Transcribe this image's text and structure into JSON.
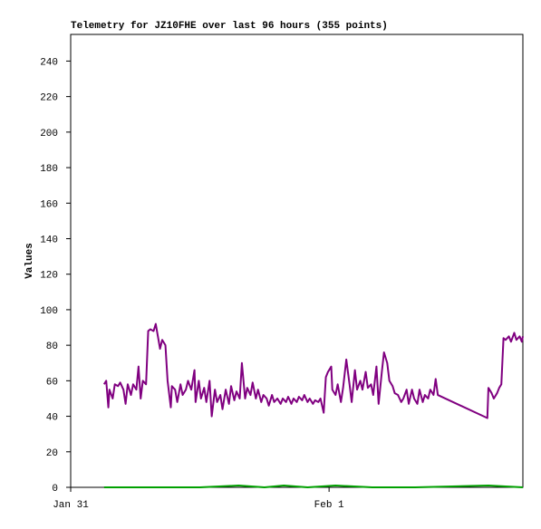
{
  "chart_data": {
    "type": "line",
    "title": "Telemetry for JZ10FHE over last 96 hours (355 points)",
    "y_label": "Values",
    "xlim": [
      0,
      42
    ],
    "xticks": [
      {
        "value": 0,
        "label": "Jan 31"
      },
      {
        "value": 24,
        "label": "Feb 1"
      }
    ],
    "ylim": [
      0,
      255
    ],
    "yticks": [
      0,
      20,
      40,
      60,
      80,
      100,
      120,
      140,
      160,
      180,
      200,
      220,
      240
    ],
    "series": [
      {
        "color": "#800080",
        "x": [
          3.1,
          3.3,
          3.5,
          3.6,
          3.9,
          4.1,
          4.4,
          4.6,
          4.9,
          5.1,
          5.3,
          5.6,
          5.8,
          6.1,
          6.3,
          6.5,
          6.7,
          7.0,
          7.2,
          7.4,
          7.7,
          7.9,
          8.1,
          8.3,
          8.5,
          8.8,
          9.0,
          9.3,
          9.4,
          9.7,
          9.9,
          10.2,
          10.4,
          10.7,
          10.9,
          11.2,
          11.5,
          11.6,
          11.9,
          12.1,
          12.4,
          12.6,
          12.9,
          13.1,
          13.4,
          13.6,
          13.9,
          14.1,
          14.4,
          14.7,
          14.9,
          15.2,
          15.4,
          15.7,
          15.9,
          16.2,
          16.4,
          16.7,
          16.9,
          17.2,
          17.4,
          17.7,
          17.9,
          18.2,
          18.4,
          18.7,
          18.9,
          19.2,
          19.5,
          19.7,
          20.0,
          20.2,
          20.5,
          20.7,
          21.0,
          21.2,
          21.5,
          21.7,
          22.0,
          22.2,
          22.5,
          22.7,
          23.0,
          23.2,
          23.5,
          23.7,
          23.9,
          24.2,
          24.3,
          24.6,
          24.8,
          25.1,
          25.3,
          25.6,
          25.9,
          26.1,
          26.4,
          26.6,
          26.9,
          27.1,
          27.4,
          27.6,
          27.9,
          28.1,
          28.4,
          28.6,
          28.9,
          29.1,
          29.4,
          29.6,
          29.9,
          30.1,
          30.4,
          30.7,
          30.9,
          31.2,
          31.4,
          31.7,
          31.9,
          32.2,
          32.4,
          32.7,
          32.9,
          33.2,
          33.4,
          33.7,
          33.9,
          34.1,
          38.7,
          38.8,
          39.1,
          39.3,
          39.6,
          39.8,
          40.0,
          40.2,
          40.4,
          40.7,
          40.9,
          41.2,
          41.4,
          41.7,
          41.9,
          42.0
        ],
        "values": [
          58,
          60,
          45,
          55,
          50,
          58,
          57,
          59,
          55,
          47,
          58,
          52,
          58,
          55,
          68,
          50,
          60,
          58,
          88,
          89,
          88,
          92,
          85,
          78,
          83,
          80,
          60,
          45,
          57,
          55,
          48,
          58,
          52,
          55,
          60,
          55,
          66,
          48,
          60,
          50,
          56,
          48,
          60,
          40,
          55,
          48,
          52,
          44,
          55,
          47,
          57,
          49,
          54,
          50,
          70,
          50,
          56,
          52,
          59,
          50,
          55,
          48,
          52,
          50,
          46,
          52,
          48,
          50,
          47,
          50,
          48,
          51,
          47,
          50,
          48,
          51,
          49,
          52,
          48,
          50,
          47,
          49,
          48,
          50,
          42,
          62,
          65,
          68,
          55,
          52,
          58,
          48,
          56,
          72,
          58,
          48,
          66,
          55,
          60,
          55,
          65,
          56,
          58,
          52,
          68,
          47,
          65,
          76,
          70,
          60,
          57,
          53,
          52,
          48,
          50,
          55,
          47,
          55,
          50,
          47,
          55,
          48,
          52,
          50,
          55,
          52,
          61,
          52,
          39,
          56,
          53,
          50,
          53,
          56,
          58,
          84,
          83,
          85,
          82,
          87,
          83,
          85,
          82,
          85
        ]
      },
      {
        "color": "#00a000",
        "x": [
          3.1,
          8.0,
          12.0,
          15.6,
          18.0,
          19.8,
          22.0,
          24.6,
          28.0,
          32.0,
          38.8,
          42.0
        ],
        "values": [
          0,
          0,
          0,
          1,
          0,
          1,
          0,
          1,
          0,
          0,
          1,
          0
        ]
      }
    ]
  }
}
